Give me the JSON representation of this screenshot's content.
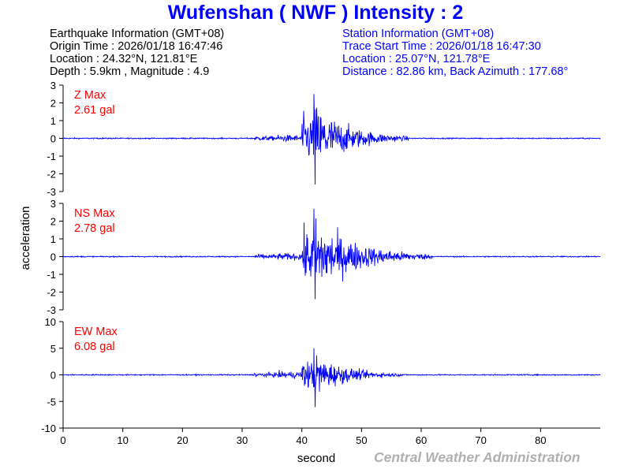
{
  "header": {
    "title": "Wufenshan ( NWF ) Intensity : 2"
  },
  "earthquake_info": {
    "heading": "Earthquake Information (GMT+08)",
    "origin_time": "Origin Time : 2026/01/18 16:47:46",
    "location": "Location : 24.32°N, 121.81°E",
    "depth_magnitude": "Depth : 5.9km , Magnitude : 4.9"
  },
  "station_info": {
    "heading": "Station Information (GMT+08)",
    "trace_start": "Trace Start Time : 2026/01/18 16:47:30",
    "location": "Location : 25.07°N, 121.78°E",
    "distance": "Distance : 82.86 km, Back Azimuth : 177.68°"
  },
  "footer": {
    "credit": "Central Weather Administration"
  },
  "colors": {
    "title": "#0000ff",
    "trace": "#0000ff",
    "max_label": "#ff0000",
    "station_text": "#0000ff",
    "credit": "#b0b0b0"
  },
  "chart_data": {
    "type": "line",
    "xlabel": "second",
    "ylabel": "acceleration",
    "xlim": [
      0,
      90
    ],
    "x_ticks": [
      0,
      10,
      20,
      30,
      40,
      50,
      60,
      70,
      80
    ],
    "grid": false,
    "panels": [
      {
        "name": "Z",
        "max_label": "Z Max",
        "max_value": "2.61 gal",
        "ylim": [
          -3,
          3
        ],
        "y_ticks": [
          3,
          2,
          1,
          0,
          -1,
          -2,
          -3
        ],
        "p_arrival": 32,
        "peak_time": 42,
        "peak_max": 2.5,
        "peak_min": -2.6,
        "decay_end": 58
      },
      {
        "name": "NS",
        "max_label": "NS Max",
        "max_value": "2.78 gal",
        "ylim": [
          -3,
          3
        ],
        "y_ticks": [
          3,
          2,
          1,
          0,
          -1,
          -2,
          -3
        ],
        "p_arrival": 32,
        "peak_time": 42,
        "peak_max": 2.7,
        "peak_min": -2.4,
        "decay_end": 62
      },
      {
        "name": "EW",
        "max_label": "EW Max",
        "max_value": "6.08 gal",
        "ylim": [
          -10,
          10
        ],
        "y_ticks": [
          10,
          5,
          0,
          -5,
          -10
        ],
        "p_arrival": 32,
        "peak_time": 42,
        "peak_max": 5.0,
        "peak_min": -6.08,
        "decay_end": 57
      }
    ]
  }
}
